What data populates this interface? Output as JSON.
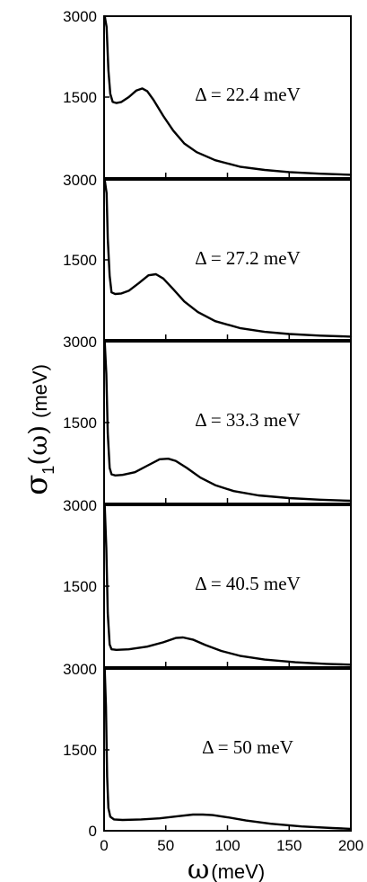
{
  "chart_data": {
    "type": "line",
    "x_range": [
      0,
      200
    ],
    "y_range": [
      0,
      3000
    ],
    "x_ticks": [
      "0",
      "50",
      "100",
      "150",
      "200"
    ],
    "y_ticks_top_panels": [
      "1500",
      "3000"
    ],
    "y_ticks_bottom_panel": [
      "0",
      "1500",
      "3000"
    ],
    "xlabel": {
      "symbol": "ω",
      "unit": "(meV)"
    },
    "ylabel": {
      "symbol": "σ",
      "subscript": "1",
      "arg": "(ω)",
      "unit": "(meV)"
    },
    "panels": [
      {
        "label": "Δ = 22.4 meV",
        "points": [
          [
            0.5,
            3000
          ],
          [
            2,
            2800
          ],
          [
            3.5,
            2000
          ],
          [
            5,
            1560
          ],
          [
            7,
            1410
          ],
          [
            10,
            1390
          ],
          [
            14,
            1410
          ],
          [
            20,
            1500
          ],
          [
            26,
            1620
          ],
          [
            31,
            1660
          ],
          [
            35,
            1610
          ],
          [
            40,
            1450
          ],
          [
            48,
            1150
          ],
          [
            56,
            880
          ],
          [
            65,
            640
          ],
          [
            75,
            480
          ],
          [
            90,
            330
          ],
          [
            110,
            210
          ],
          [
            130,
            150
          ],
          [
            150,
            110
          ],
          [
            175,
            80
          ],
          [
            200,
            60
          ]
        ]
      },
      {
        "label": "Δ = 27.2 meV",
        "points": [
          [
            0.5,
            3000
          ],
          [
            2,
            2750
          ],
          [
            3,
            1900
          ],
          [
            4.5,
            1200
          ],
          [
            6,
            890
          ],
          [
            9,
            860
          ],
          [
            14,
            870
          ],
          [
            20,
            920
          ],
          [
            28,
            1060
          ],
          [
            36,
            1210
          ],
          [
            42,
            1230
          ],
          [
            48,
            1150
          ],
          [
            56,
            950
          ],
          [
            65,
            720
          ],
          [
            76,
            520
          ],
          [
            90,
            350
          ],
          [
            110,
            220
          ],
          [
            130,
            150
          ],
          [
            150,
            110
          ],
          [
            175,
            80
          ],
          [
            200,
            60
          ]
        ]
      },
      {
        "label": "Δ = 33.3 meV",
        "points": [
          [
            0.5,
            3000
          ],
          [
            1.8,
            2400
          ],
          [
            3,
            1300
          ],
          [
            4.5,
            660
          ],
          [
            6,
            540
          ],
          [
            9,
            520
          ],
          [
            15,
            530
          ],
          [
            25,
            580
          ],
          [
            35,
            700
          ],
          [
            45,
            820
          ],
          [
            52,
            830
          ],
          [
            58,
            790
          ],
          [
            67,
            660
          ],
          [
            78,
            480
          ],
          [
            90,
            340
          ],
          [
            105,
            230
          ],
          [
            125,
            150
          ],
          [
            150,
            100
          ],
          [
            175,
            70
          ],
          [
            200,
            50
          ]
        ]
      },
      {
        "label": "Δ = 40.5 meV",
        "points": [
          [
            0.5,
            3000
          ],
          [
            1.8,
            2200
          ],
          [
            3,
            1000
          ],
          [
            4.5,
            420
          ],
          [
            6,
            330
          ],
          [
            10,
            320
          ],
          [
            20,
            330
          ],
          [
            35,
            380
          ],
          [
            48,
            460
          ],
          [
            58,
            540
          ],
          [
            64,
            550
          ],
          [
            72,
            510
          ],
          [
            82,
            410
          ],
          [
            95,
            300
          ],
          [
            110,
            210
          ],
          [
            130,
            140
          ],
          [
            155,
            90
          ],
          [
            180,
            60
          ],
          [
            200,
            45
          ]
        ]
      },
      {
        "label": "Δ = 50 meV",
        "points": [
          [
            0.5,
            3000
          ],
          [
            1.5,
            2300
          ],
          [
            2.5,
            1000
          ],
          [
            3.5,
            420
          ],
          [
            5,
            260
          ],
          [
            8,
            210
          ],
          [
            15,
            200
          ],
          [
            30,
            210
          ],
          [
            45,
            230
          ],
          [
            60,
            270
          ],
          [
            72,
            300
          ],
          [
            80,
            300
          ],
          [
            88,
            290
          ],
          [
            100,
            250
          ],
          [
            115,
            190
          ],
          [
            135,
            130
          ],
          [
            160,
            80
          ],
          [
            185,
            50
          ],
          [
            200,
            35
          ]
        ]
      }
    ],
    "grid": false,
    "legend": "none"
  }
}
